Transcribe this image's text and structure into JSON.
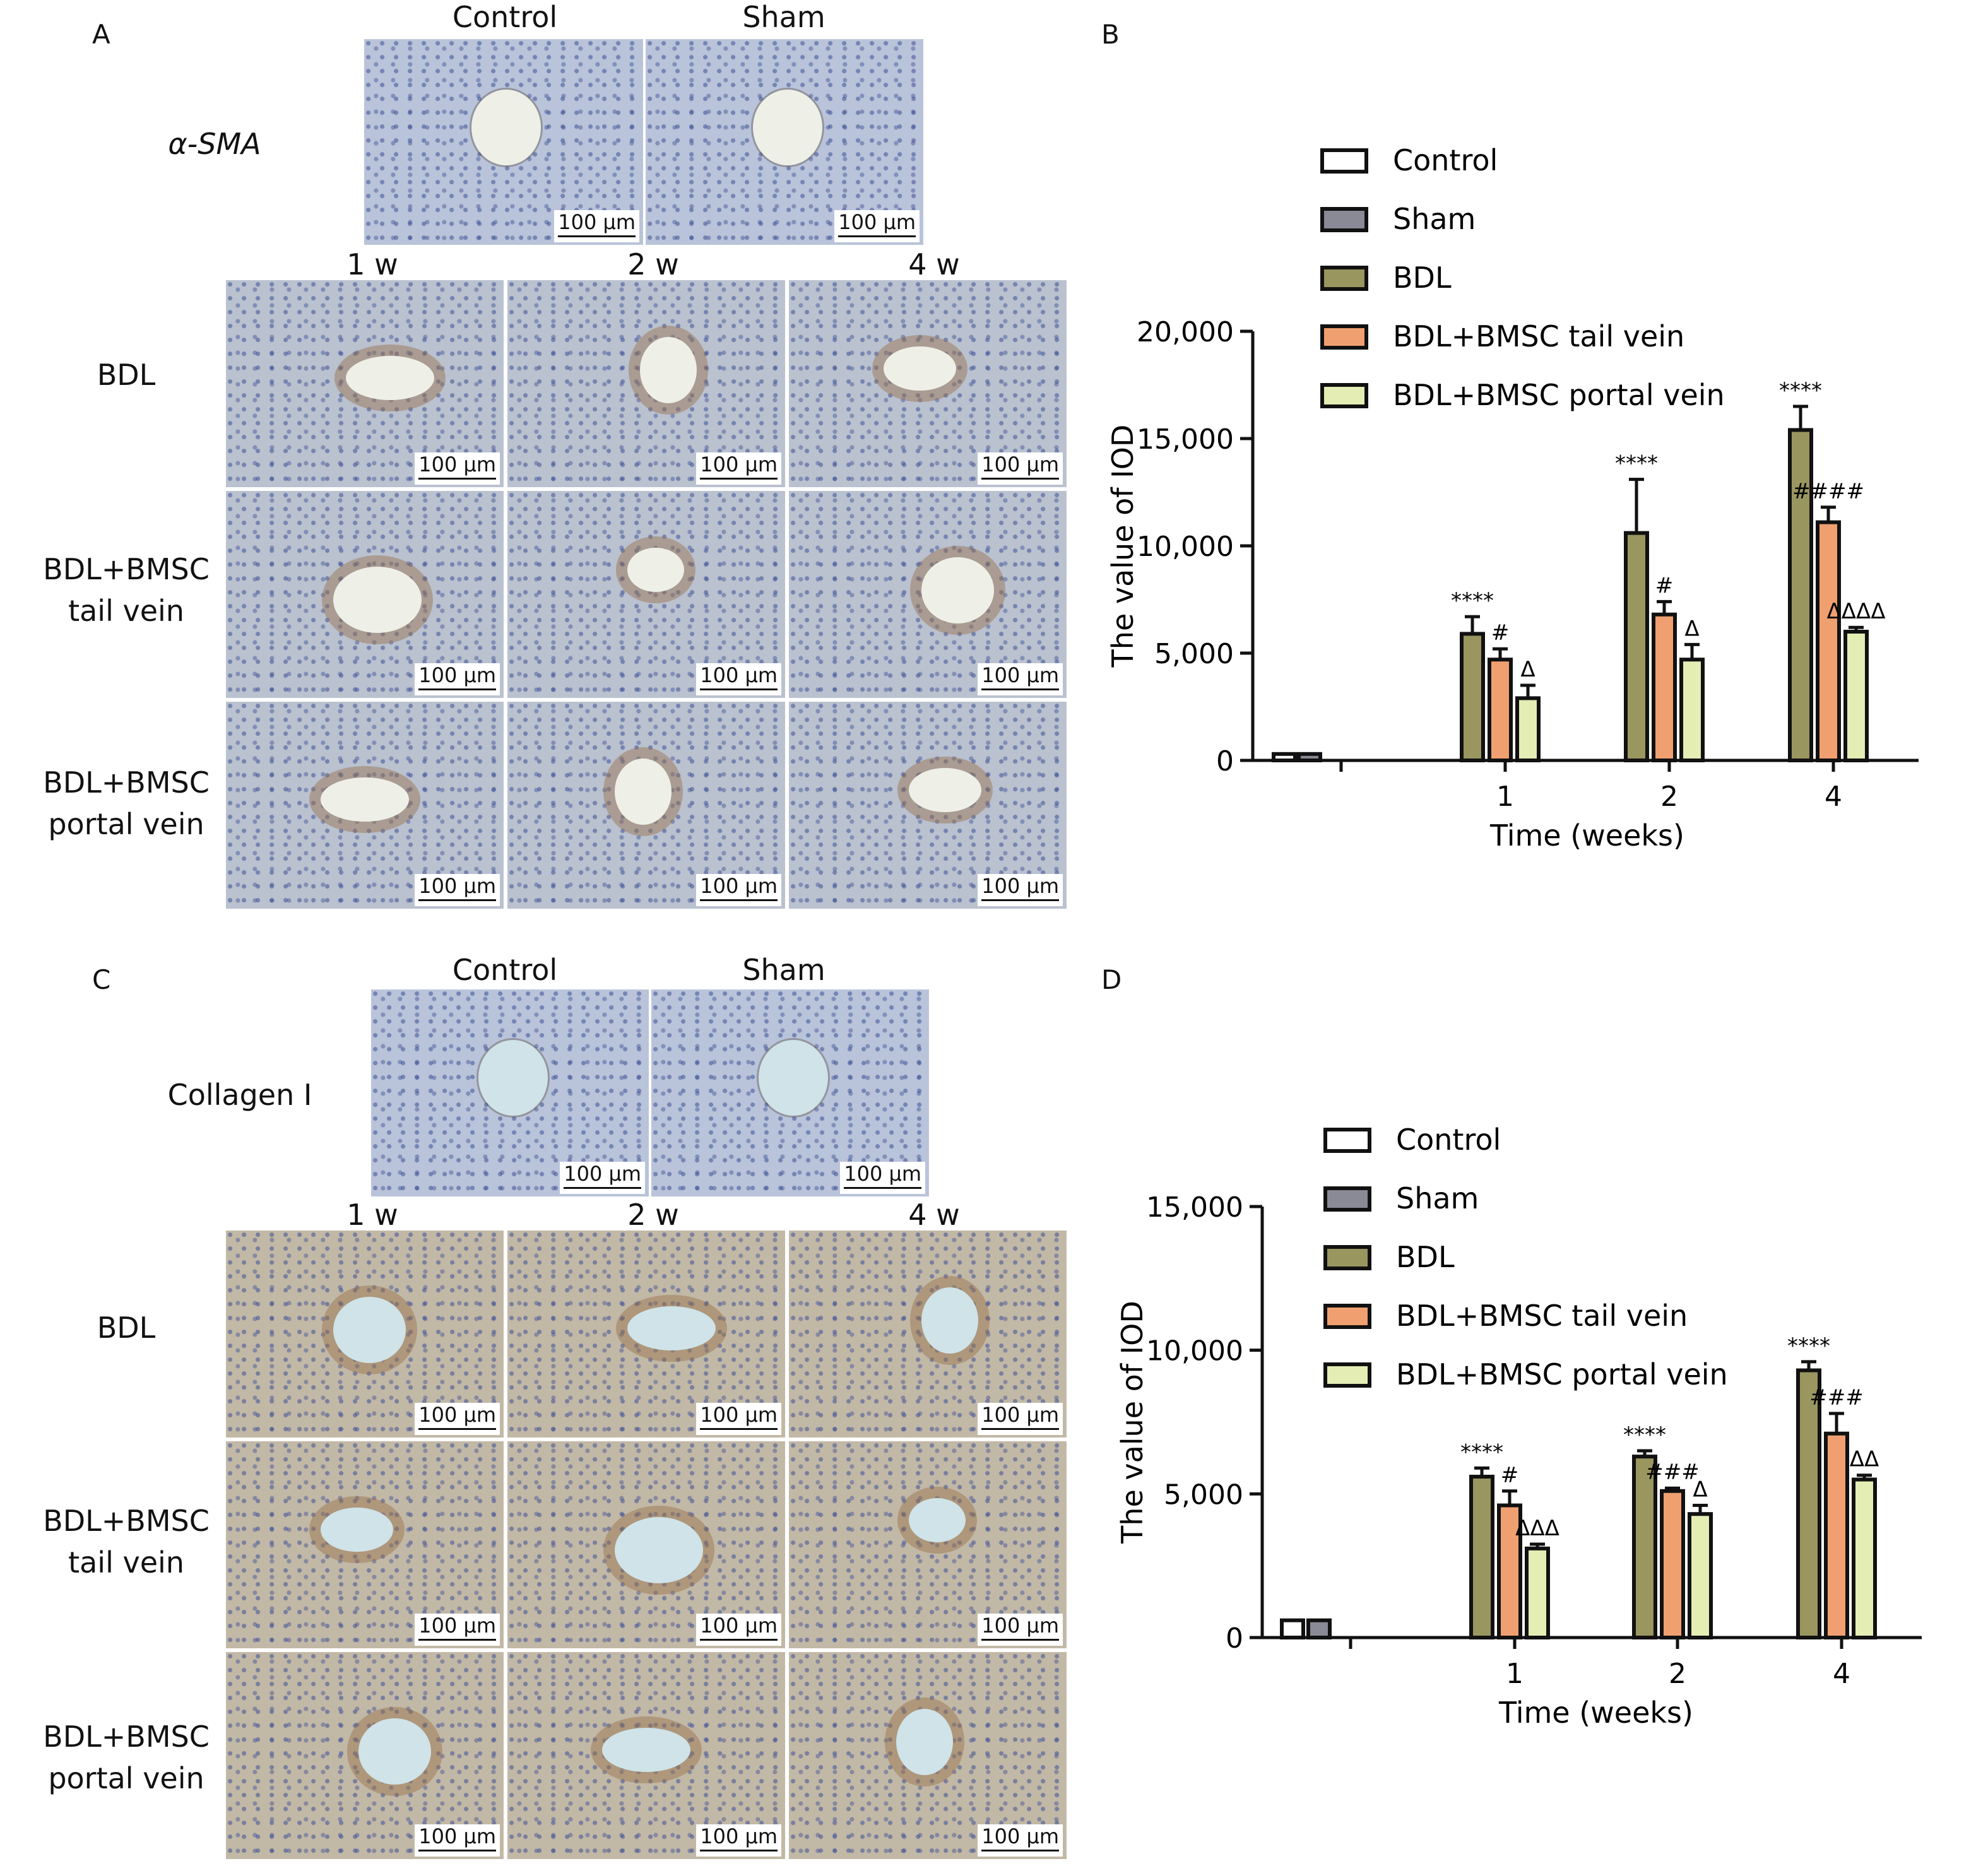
{
  "panels": {
    "A": "A",
    "B": "B",
    "C": "C",
    "D": "D"
  },
  "micrographs": {
    "top_groups": [
      "Control",
      "Sham"
    ],
    "time_points": [
      "1 w",
      "2 w",
      "4 w"
    ],
    "rows": [
      "BDL",
      "BDL+BMSC\ntail vein",
      "BDL+BMSC\nportal vein"
    ],
    "stain_A": "α-SMA",
    "stain_C": "Collagen I",
    "scale_bar": "100 μm"
  },
  "colors": {
    "Control": "#ffffff",
    "Sham": "#8a8a96",
    "BDL": "#9a9660",
    "BDL+BMSC tail vein": "#f0a070",
    "BDL+BMSC portal vein": "#e4edb4",
    "tissue_blue": "#b9c3d9",
    "tissue_brown": "#c8ab8c"
  },
  "chart_data": [
    {
      "panel": "B",
      "type": "bar",
      "ylabel": "The value of IOD",
      "xlabel": "Time (weeks)",
      "ylim": [
        0,
        20000
      ],
      "yticks": [
        0,
        5000,
        10000,
        15000,
        20000
      ],
      "ytick_labels": [
        "0",
        "5,000",
        "10,000",
        "15,000",
        "20,000"
      ],
      "legend": [
        "Control",
        "Sham",
        "BDL",
        "BDL+BMSC tail vein",
        "BDL+BMSC portal vein"
      ],
      "legend_position": "top-right",
      "baseline": [
        {
          "name": "Control",
          "value": 300,
          "error": 60
        },
        {
          "name": "Sham",
          "value": 300,
          "error": 60
        }
      ],
      "categories": [
        "1",
        "2",
        "4"
      ],
      "series": [
        {
          "name": "BDL",
          "values": [
            5900,
            10600,
            15400
          ],
          "errors": [
            800,
            2500,
            1100
          ],
          "annotations": [
            "****",
            "****",
            "****"
          ]
        },
        {
          "name": "BDL+BMSC tail vein",
          "values": [
            4700,
            6800,
            11100
          ],
          "errors": [
            500,
            600,
            700
          ],
          "annotations": [
            "#",
            "#",
            "####"
          ]
        },
        {
          "name": "BDL+BMSC portal vein",
          "values": [
            2900,
            4700,
            6000
          ],
          "errors": [
            600,
            700,
            200
          ],
          "annotations": [
            "Δ",
            "Δ",
            "ΔΔΔΔ"
          ]
        }
      ]
    },
    {
      "panel": "D",
      "type": "bar",
      "ylabel": "The value of IOD",
      "xlabel": "Time (weeks)",
      "ylim": [
        0,
        15000
      ],
      "yticks": [
        0,
        5000,
        10000,
        15000
      ],
      "ytick_labels": [
        "0",
        "5,000",
        "10,000",
        "15,000"
      ],
      "legend": [
        "Control",
        "Sham",
        "BDL",
        "BDL+BMSC tail vein",
        "BDL+BMSC portal vein"
      ],
      "legend_position": "top-right",
      "baseline": [
        {
          "name": "Control",
          "value": 600,
          "error": 50
        },
        {
          "name": "Sham",
          "value": 600,
          "error": 50
        }
      ],
      "categories": [
        "1",
        "2",
        "4"
      ],
      "series": [
        {
          "name": "BDL",
          "values": [
            5600,
            6300,
            9300
          ],
          "errors": [
            300,
            200,
            300
          ],
          "annotations": [
            "****",
            "****",
            "****"
          ]
        },
        {
          "name": "BDL+BMSC tail vein",
          "values": [
            4600,
            5100,
            7100
          ],
          "errors": [
            500,
            100,
            700
          ],
          "annotations": [
            "#",
            "###",
            "###"
          ]
        },
        {
          "name": "BDL+BMSC portal vein",
          "values": [
            3100,
            4300,
            5500
          ],
          "errors": [
            150,
            300,
            150
          ],
          "annotations": [
            "ΔΔΔ",
            "Δ",
            "ΔΔ"
          ]
        }
      ]
    }
  ]
}
